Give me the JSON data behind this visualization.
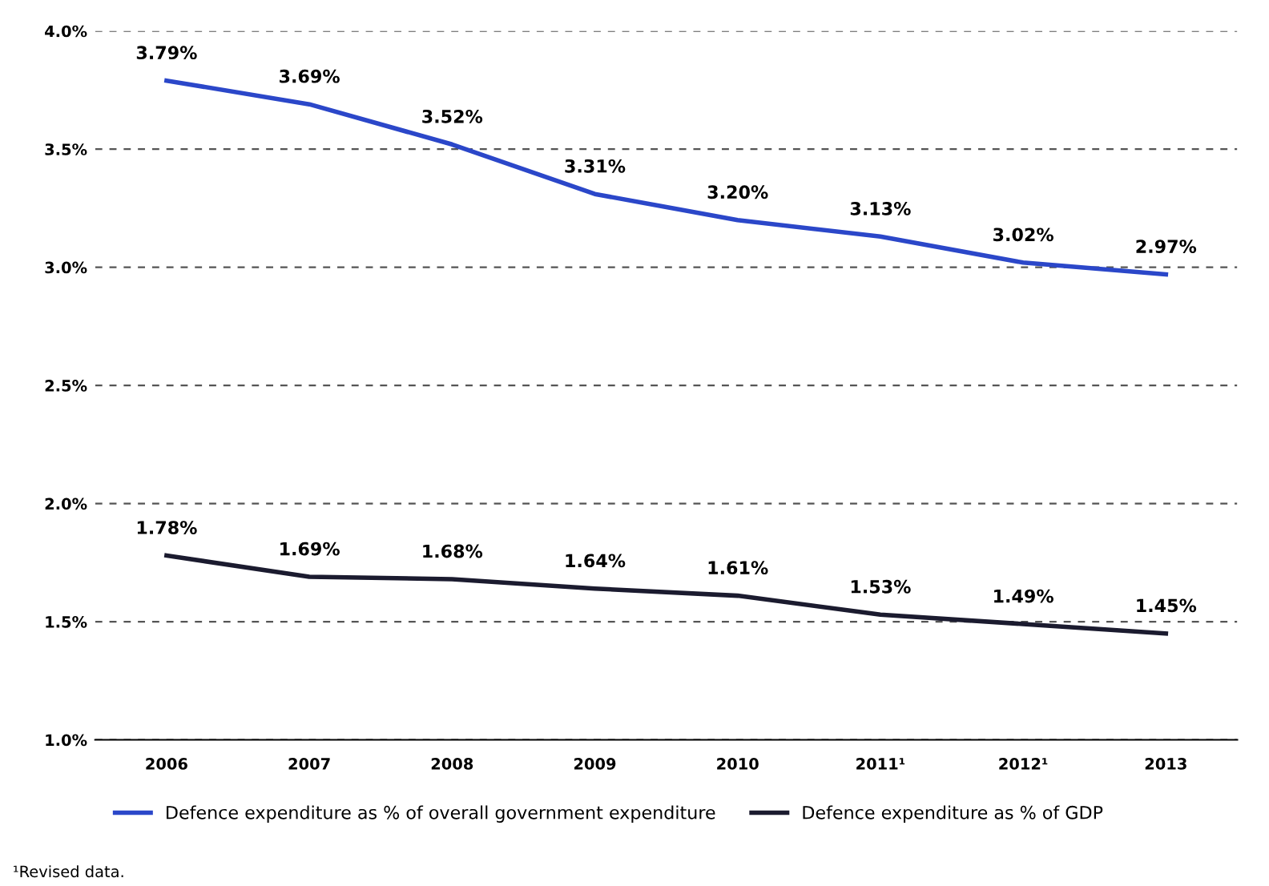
{
  "chart_data": {
    "type": "line",
    "categories": [
      "2006",
      "2007",
      "2008",
      "2009",
      "2010",
      "2011¹",
      "2012¹",
      "2013"
    ],
    "series": [
      {
        "name": "Defence expenditure as % of overall government expenditure",
        "color": "#2b47c9",
        "values": [
          3.79,
          3.69,
          3.52,
          3.31,
          3.2,
          3.13,
          3.02,
          2.97
        ],
        "value_labels": [
          "3.79%",
          "3.69%",
          "3.52%",
          "3.31%",
          "3.20%",
          "3.13%",
          "3.02%",
          "2.97%"
        ]
      },
      {
        "name": "Defence expenditure as % of GDP",
        "color": "#1b1b2f",
        "values": [
          1.78,
          1.69,
          1.68,
          1.64,
          1.61,
          1.53,
          1.49,
          1.45
        ],
        "value_labels": [
          "1.78%",
          "1.69%",
          "1.68%",
          "1.64%",
          "1.61%",
          "1.53%",
          "1.49%",
          "1.45%"
        ]
      }
    ],
    "ylim": [
      1.0,
      4.0
    ],
    "yticks": [
      {
        "value": 1.0,
        "label": "1.0%"
      },
      {
        "value": 1.5,
        "label": "1.5%"
      },
      {
        "value": 2.0,
        "label": "2.0%"
      },
      {
        "value": 2.5,
        "label": "2.5%"
      },
      {
        "value": 3.0,
        "label": "3.0%"
      },
      {
        "value": 3.5,
        "label": "3.5%"
      },
      {
        "value": 4.0,
        "label": "4.0%"
      }
    ],
    "grid": "y",
    "legend": "bottom",
    "marker": "none",
    "line_style": "solid",
    "annotations": [
      "¹Revised data."
    ]
  }
}
